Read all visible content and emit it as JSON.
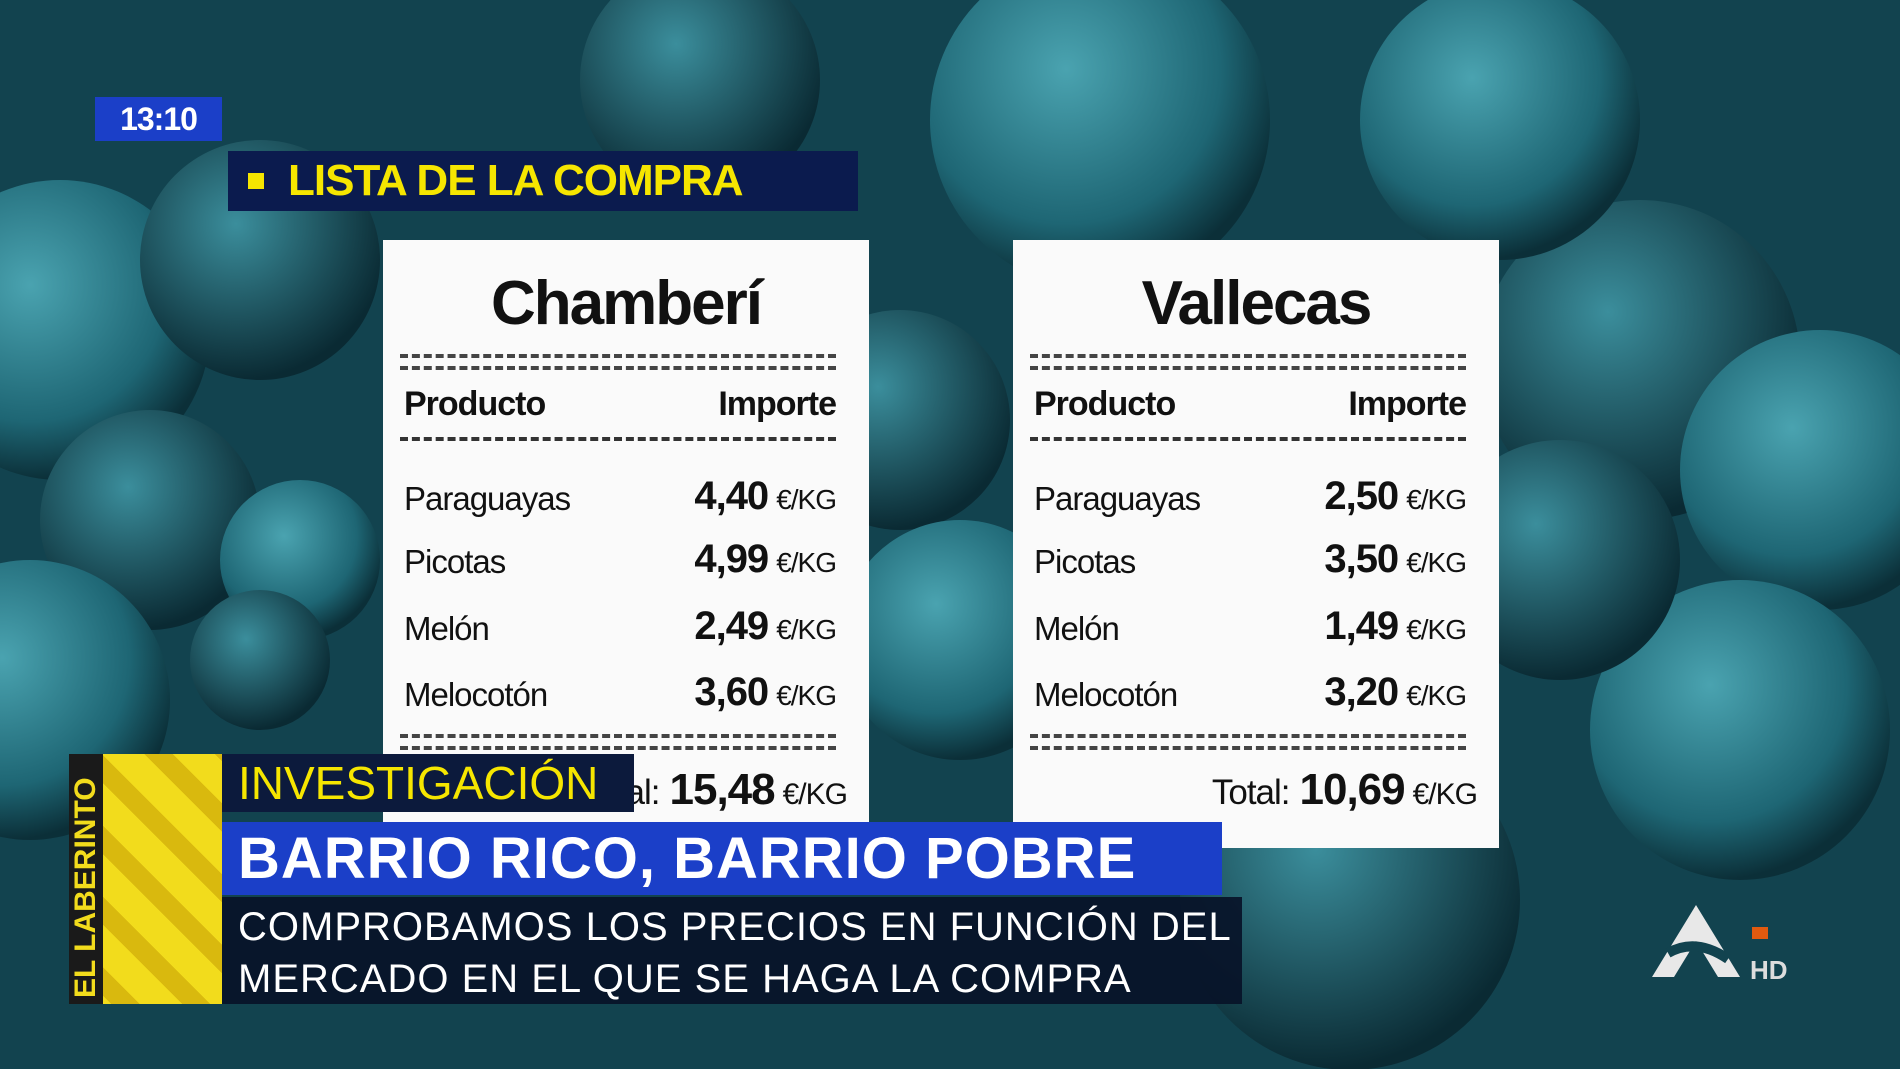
{
  "clock": "13:10",
  "section_title": "LISTA DE LA COMPRA",
  "receipts": [
    {
      "title": "Chamberí",
      "col_product": "Producto",
      "col_amount": "Importe",
      "items": [
        {
          "name": "Paraguayas",
          "price": "4,40",
          "unit": "€/KG"
        },
        {
          "name": "Picotas",
          "price": "4,99",
          "unit": "€/KG"
        },
        {
          "name": "Melón",
          "price": "2,49",
          "unit": "€/KG"
        },
        {
          "name": "Melocotón",
          "price": "3,60",
          "unit": "€/KG"
        }
      ],
      "total_label": "Total:",
      "total": "15,48",
      "total_unit": "€/KG"
    },
    {
      "title": "Vallecas",
      "col_product": "Producto",
      "col_amount": "Importe",
      "items": [
        {
          "name": "Paraguayas",
          "price": "2,50",
          "unit": "€/KG"
        },
        {
          "name": "Picotas",
          "price": "3,50",
          "unit": "€/KG"
        },
        {
          "name": "Melón",
          "price": "1,49",
          "unit": "€/KG"
        },
        {
          "name": "Melocotón",
          "price": "3,20",
          "unit": "€/KG"
        }
      ],
      "total_label": "Total:",
      "total": "10,69",
      "total_unit": "€/KG"
    }
  ],
  "lower_third": {
    "tag": "INVESTIGACIÓN",
    "headline": "BARRIO RICO, BARRIO POBRE",
    "subtitle": [
      "COMPROBAMOS LOS PRECIOS EN FUNCIÓN DEL",
      "MERCADO EN EL QUE SE HAGA LA COMPRA"
    ]
  },
  "program_logo": "EL LABERINTO",
  "channel_badge": "HD"
}
